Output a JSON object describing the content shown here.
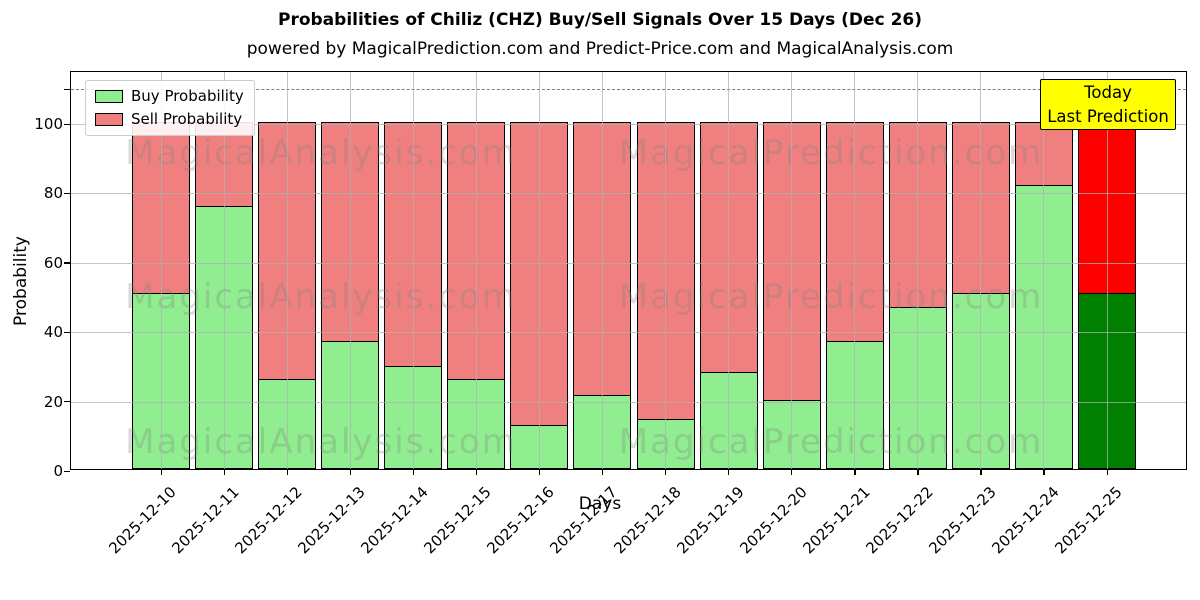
{
  "title": "Probabilities of Chiliz (CHZ) Buy/Sell Signals Over 15 Days (Dec 26)",
  "subtitle": "powered by MagicalPrediction.com and Predict-Price.com and MagicalAnalysis.com",
  "legend": {
    "buy_label": "Buy Probability",
    "sell_label": "Sell Probability"
  },
  "annotation": {
    "line1": "Today",
    "line2": "Last Prediction"
  },
  "watermarks": {
    "left": "MagicalAnalysis.com",
    "right": "MagicalPrediction.com"
  },
  "axes": {
    "xlabel": "Days",
    "ylabel": "Probability",
    "yticks": [
      0,
      20,
      40,
      60,
      80,
      100
    ],
    "ylim": [
      0,
      115
    ],
    "dashed_line_y": 110,
    "grid": true
  },
  "colors": {
    "buy": "#90EE90",
    "sell": "#F08080",
    "buy_today": "#008000",
    "sell_today": "#FF0000",
    "bar_edge": "#000000",
    "annotation_bg": "#FFFF00",
    "grid": "#b0b0b0",
    "dashed_line": "#7f7f7f"
  },
  "chart_data": {
    "type": "bar",
    "stacked": true,
    "title": "Probabilities of Chiliz (CHZ) Buy/Sell Signals Over 15 Days (Dec 26)",
    "xlabel": "Days",
    "ylabel": "Probability",
    "ylim": [
      0,
      115
    ],
    "legend_position": "upper left",
    "categories": [
      "2025-12-10",
      "2025-12-11",
      "2025-12-12",
      "2025-12-13",
      "2025-12-14",
      "2025-12-15",
      "2025-12-16",
      "2025-12-17",
      "2025-12-18",
      "2025-12-19",
      "2025-12-20",
      "2025-12-21",
      "2025-12-22",
      "2025-12-23",
      "2025-12-24",
      "2025-12-25"
    ],
    "series": [
      {
        "name": "Buy Probability",
        "values": [
          51,
          76,
          26,
          37,
          30,
          26,
          13,
          21.5,
          14.5,
          28,
          20,
          37,
          47,
          51,
          82,
          51
        ]
      },
      {
        "name": "Sell Probability",
        "values": [
          49,
          24,
          74,
          63,
          70,
          74,
          87,
          78.5,
          85.5,
          72,
          80,
          63,
          53,
          49,
          18,
          49
        ]
      }
    ],
    "today_index": 15
  }
}
